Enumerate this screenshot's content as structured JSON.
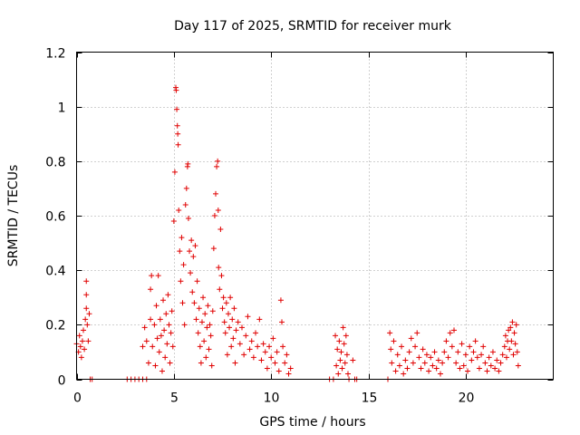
{
  "chart_data": {
    "type": "scatter",
    "title": "Day 117 of 2025, SRMTID for receiver murk",
    "xlabel": "GPS time / hours",
    "ylabel": "SRMTID / TECUs",
    "xlim": [
      0,
      24.5
    ],
    "ylim": [
      0,
      1.2
    ],
    "x_ticks": [
      0,
      5,
      10,
      15,
      20
    ],
    "y_ticks": [
      0,
      0.2,
      0.4,
      0.6,
      0.8,
      1,
      1.2
    ],
    "y_tick_labels": [
      "0",
      "0.2",
      "0.4",
      "0.6",
      "0.8",
      "1",
      "1.2"
    ],
    "grid": true,
    "marker": "+",
    "color": "#e00000",
    "series": [
      {
        "name": "SRMTID",
        "points": [
          [
            0.0,
            0.13
          ],
          [
            0.1,
            0.1
          ],
          [
            0.15,
            0.16
          ],
          [
            0.2,
            0.12
          ],
          [
            0.25,
            0.08
          ],
          [
            0.3,
            0.14
          ],
          [
            0.35,
            0.18
          ],
          [
            0.4,
            0.11
          ],
          [
            0.45,
            0.22
          ],
          [
            0.5,
            0.26
          ],
          [
            0.5,
            0.31
          ],
          [
            0.5,
            0.36
          ],
          [
            0.55,
            0.2
          ],
          [
            0.6,
            0.14
          ],
          [
            0.65,
            0.24
          ],
          [
            0.7,
            0.0
          ],
          [
            0.8,
            0.0
          ],
          [
            2.6,
            0.0
          ],
          [
            2.8,
            0.0
          ],
          [
            3.0,
            0.0
          ],
          [
            3.2,
            0.0
          ],
          [
            3.4,
            0.0
          ],
          [
            3.6,
            0.0
          ],
          [
            3.4,
            0.12
          ],
          [
            3.5,
            0.19
          ],
          [
            3.6,
            0.14
          ],
          [
            3.7,
            0.06
          ],
          [
            3.8,
            0.22
          ],
          [
            3.8,
            0.33
          ],
          [
            3.85,
            0.38
          ],
          [
            3.9,
            0.12
          ],
          [
            4.0,
            0.2
          ],
          [
            4.05,
            0.05
          ],
          [
            4.1,
            0.27
          ],
          [
            4.15,
            0.15
          ],
          [
            4.2,
            0.38
          ],
          [
            4.25,
            0.1
          ],
          [
            4.3,
            0.22
          ],
          [
            4.35,
            0.16
          ],
          [
            4.4,
            0.03
          ],
          [
            4.45,
            0.29
          ],
          [
            4.5,
            0.18
          ],
          [
            4.55,
            0.08
          ],
          [
            4.6,
            0.24
          ],
          [
            4.65,
            0.13
          ],
          [
            4.7,
            0.31
          ],
          [
            4.75,
            0.2
          ],
          [
            4.8,
            0.06
          ],
          [
            4.85,
            0.17
          ],
          [
            4.9,
            0.25
          ],
          [
            4.95,
            0.12
          ],
          [
            5.0,
            0.58
          ],
          [
            5.05,
            0.76
          ],
          [
            5.1,
            1.07
          ],
          [
            5.12,
            1.06
          ],
          [
            5.15,
            0.99
          ],
          [
            5.18,
            0.93
          ],
          [
            5.2,
            0.9
          ],
          [
            5.22,
            0.86
          ],
          [
            5.25,
            0.62
          ],
          [
            5.3,
            0.47
          ],
          [
            5.35,
            0.36
          ],
          [
            5.4,
            0.52
          ],
          [
            5.45,
            0.28
          ],
          [
            5.5,
            0.42
          ],
          [
            5.55,
            0.2
          ],
          [
            5.6,
            0.64
          ],
          [
            5.65,
            0.7
          ],
          [
            5.7,
            0.78
          ],
          [
            5.72,
            0.79
          ],
          [
            5.75,
            0.59
          ],
          [
            5.8,
            0.47
          ],
          [
            5.85,
            0.39
          ],
          [
            5.9,
            0.51
          ],
          [
            5.95,
            0.32
          ],
          [
            6.0,
            0.45
          ],
          [
            6.05,
            0.28
          ],
          [
            6.1,
            0.49
          ],
          [
            6.15,
            0.22
          ],
          [
            6.2,
            0.36
          ],
          [
            6.25,
            0.17
          ],
          [
            6.3,
            0.26
          ],
          [
            6.35,
            0.12
          ],
          [
            6.4,
            0.06
          ],
          [
            6.45,
            0.21
          ],
          [
            6.5,
            0.3
          ],
          [
            6.55,
            0.14
          ],
          [
            6.6,
            0.24
          ],
          [
            6.65,
            0.08
          ],
          [
            6.7,
            0.19
          ],
          [
            6.75,
            0.27
          ],
          [
            6.8,
            0.11
          ],
          [
            6.85,
            0.2
          ],
          [
            6.9,
            0.16
          ],
          [
            6.95,
            0.05
          ],
          [
            7.0,
            0.25
          ],
          [
            7.05,
            0.48
          ],
          [
            7.1,
            0.6
          ],
          [
            7.15,
            0.68
          ],
          [
            7.2,
            0.78
          ],
          [
            7.25,
            0.8
          ],
          [
            7.28,
            0.62
          ],
          [
            7.3,
            0.41
          ],
          [
            7.35,
            0.33
          ],
          [
            7.4,
            0.55
          ],
          [
            7.45,
            0.38
          ],
          [
            7.5,
            0.26
          ],
          [
            7.55,
            0.3
          ],
          [
            7.6,
            0.21
          ],
          [
            7.65,
            0.17
          ],
          [
            7.7,
            0.28
          ],
          [
            7.75,
            0.09
          ],
          [
            7.8,
            0.24
          ],
          [
            7.85,
            0.19
          ],
          [
            7.9,
            0.3
          ],
          [
            7.95,
            0.12
          ],
          [
            8.0,
            0.22
          ],
          [
            8.05,
            0.15
          ],
          [
            8.1,
            0.26
          ],
          [
            8.15,
            0.06
          ],
          [
            8.2,
            0.18
          ],
          [
            8.3,
            0.21
          ],
          [
            8.4,
            0.13
          ],
          [
            8.5,
            0.19
          ],
          [
            8.6,
            0.09
          ],
          [
            8.7,
            0.16
          ],
          [
            8.8,
            0.23
          ],
          [
            8.9,
            0.11
          ],
          [
            9.0,
            0.14
          ],
          [
            9.1,
            0.08
          ],
          [
            9.2,
            0.17
          ],
          [
            9.3,
            0.12
          ],
          [
            9.4,
            0.22
          ],
          [
            9.5,
            0.07
          ],
          [
            9.6,
            0.13
          ],
          [
            9.7,
            0.1
          ],
          [
            9.8,
            0.04
          ],
          [
            9.9,
            0.12
          ],
          [
            10.0,
            0.08
          ],
          [
            10.1,
            0.15
          ],
          [
            10.2,
            0.06
          ],
          [
            10.3,
            0.1
          ],
          [
            10.4,
            0.03
          ],
          [
            10.5,
            0.29
          ],
          [
            10.55,
            0.21
          ],
          [
            10.6,
            0.12
          ],
          [
            10.7,
            0.06
          ],
          [
            10.8,
            0.09
          ],
          [
            10.9,
            0.02
          ],
          [
            11.0,
            0.04
          ],
          [
            13.0,
            0.0
          ],
          [
            13.2,
            0.0
          ],
          [
            13.3,
            0.16
          ],
          [
            13.35,
            0.05
          ],
          [
            13.4,
            0.11
          ],
          [
            13.45,
            0.02
          ],
          [
            13.5,
            0.14
          ],
          [
            13.55,
            0.07
          ],
          [
            13.6,
            0.1
          ],
          [
            13.65,
            0.04
          ],
          [
            13.7,
            0.19
          ],
          [
            13.75,
            0.13
          ],
          [
            13.8,
            0.06
          ],
          [
            13.85,
            0.16
          ],
          [
            13.9,
            0.09
          ],
          [
            13.95,
            0.02
          ],
          [
            14.0,
            0.0
          ],
          [
            14.2,
            0.07
          ],
          [
            14.3,
            0.0
          ],
          [
            14.4,
            0.0
          ],
          [
            16.0,
            0.0
          ],
          [
            16.1,
            0.17
          ],
          [
            16.15,
            0.11
          ],
          [
            16.2,
            0.06
          ],
          [
            16.3,
            0.14
          ],
          [
            16.4,
            0.03
          ],
          [
            16.5,
            0.09
          ],
          [
            16.6,
            0.05
          ],
          [
            16.7,
            0.12
          ],
          [
            16.8,
            0.02
          ],
          [
            16.9,
            0.07
          ],
          [
            17.0,
            0.04
          ],
          [
            17.1,
            0.1
          ],
          [
            17.2,
            0.15
          ],
          [
            17.3,
            0.06
          ],
          [
            17.4,
            0.12
          ],
          [
            17.5,
            0.17
          ],
          [
            17.6,
            0.08
          ],
          [
            17.7,
            0.04
          ],
          [
            17.8,
            0.11
          ],
          [
            17.9,
            0.06
          ],
          [
            18.0,
            0.09
          ],
          [
            18.1,
            0.03
          ],
          [
            18.2,
            0.08
          ],
          [
            18.3,
            0.05
          ],
          [
            18.4,
            0.1
          ],
          [
            18.5,
            0.04
          ],
          [
            18.6,
            0.07
          ],
          [
            18.7,
            0.02
          ],
          [
            18.8,
            0.06
          ],
          [
            18.9,
            0.1
          ],
          [
            19.0,
            0.14
          ],
          [
            19.1,
            0.08
          ],
          [
            19.2,
            0.17
          ],
          [
            19.3,
            0.12
          ],
          [
            19.4,
            0.18
          ],
          [
            19.5,
            0.06
          ],
          [
            19.6,
            0.1
          ],
          [
            19.7,
            0.04
          ],
          [
            19.8,
            0.13
          ],
          [
            19.9,
            0.05
          ],
          [
            20.0,
            0.09
          ],
          [
            20.1,
            0.03
          ],
          [
            20.2,
            0.12
          ],
          [
            20.3,
            0.07
          ],
          [
            20.4,
            0.1
          ],
          [
            20.5,
            0.14
          ],
          [
            20.6,
            0.08
          ],
          [
            20.7,
            0.04
          ],
          [
            20.8,
            0.09
          ],
          [
            20.9,
            0.12
          ],
          [
            21.0,
            0.06
          ],
          [
            21.1,
            0.03
          ],
          [
            21.2,
            0.08
          ],
          [
            21.3,
            0.05
          ],
          [
            21.4,
            0.1
          ],
          [
            21.5,
            0.04
          ],
          [
            21.6,
            0.07
          ],
          [
            21.7,
            0.03
          ],
          [
            21.8,
            0.06
          ],
          [
            21.9,
            0.09
          ],
          [
            22.0,
            0.12
          ],
          [
            22.05,
            0.16
          ],
          [
            22.1,
            0.08
          ],
          [
            22.15,
            0.14
          ],
          [
            22.2,
            0.18
          ],
          [
            22.25,
            0.11
          ],
          [
            22.3,
            0.19
          ],
          [
            22.35,
            0.14
          ],
          [
            22.4,
            0.21
          ],
          [
            22.45,
            0.09
          ],
          [
            22.5,
            0.17
          ],
          [
            22.55,
            0.13
          ],
          [
            22.6,
            0.2
          ],
          [
            22.65,
            0.1
          ],
          [
            22.7,
            0.05
          ]
        ]
      }
    ]
  }
}
